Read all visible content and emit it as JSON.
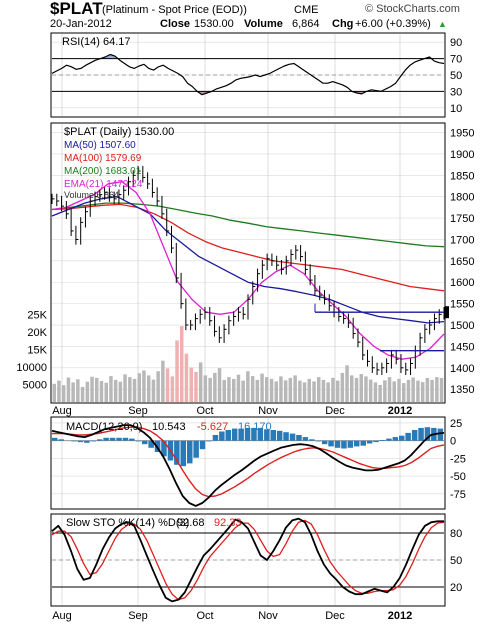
{
  "header": {
    "symbol": "$PLAT",
    "description": "(Platinum  - Spot Price (EOD))",
    "exchange": "CME",
    "date": "20-Jan-2012",
    "close_label": "Close",
    "close_value": "1530.00",
    "volume_label": "Volume",
    "volume_value": "6,864",
    "chg_label": "Chg",
    "chg_value": "+6.00 (+0.39%)",
    "chg_arrow": "▲",
    "watermark": "© StockCharts.com",
    "accent_color": "#2a9d2a"
  },
  "chart_data": [
    {
      "type": "line",
      "panel": "RSI",
      "legend": "RSI(14) 64.17",
      "ylim": [
        0,
        100
      ],
      "yticks": [
        10,
        30,
        50,
        70,
        90
      ],
      "reference_lines": [
        30,
        50,
        70
      ],
      "x_labels": [
        "Aug",
        "Sep",
        "Oct",
        "Nov",
        "Dec",
        "2012"
      ],
      "series": [
        {
          "name": "RSI(14)",
          "color": "#000000",
          "values": [
            52,
            55,
            58,
            62,
            60,
            57,
            58,
            62,
            65,
            68,
            70,
            72,
            75,
            73,
            68,
            64,
            60,
            58,
            61,
            63,
            58,
            56,
            60,
            62,
            58,
            55,
            52,
            48,
            40,
            36,
            30,
            26,
            28,
            30,
            33,
            35,
            37,
            40,
            44,
            46,
            47,
            48,
            50,
            48,
            50,
            52,
            55,
            58,
            61,
            63,
            64,
            60,
            56,
            52,
            48,
            44,
            40,
            40,
            42,
            40,
            38,
            35,
            30,
            28,
            27,
            30,
            32,
            31,
            30,
            33,
            36,
            40,
            48,
            56,
            62,
            66,
            68,
            70,
            72,
            67,
            65,
            64
          ]
        }
      ]
    },
    {
      "type": "line",
      "panel": "Price",
      "title": "$PLAT (Daily) 1530.00",
      "ylim": [
        1320,
        1970
      ],
      "yticks": [
        1350,
        1400,
        1450,
        1500,
        1550,
        1600,
        1650,
        1700,
        1750,
        1800,
        1850,
        1900,
        1950
      ],
      "volume_ticks": [
        "5000",
        "10000",
        "15K",
        "20K",
        "25K"
      ],
      "x_labels": [
        "Aug",
        "Sep",
        "Oct",
        "Nov",
        "Dec",
        "2012"
      ],
      "annotation_lines": [
        1530,
        1440
      ],
      "series": [
        {
          "name": "$PLAT",
          "color": "#000000",
          "values": [
            1795,
            1790,
            1778,
            1760,
            1720,
            1700,
            1740,
            1765,
            1790,
            1800,
            1805,
            1810,
            1800,
            1795,
            1805,
            1815,
            1835,
            1850,
            1860,
            1845,
            1830,
            1810,
            1790,
            1760,
            1720,
            1680,
            1610,
            1550,
            1500,
            1500,
            1515,
            1525,
            1530,
            1510,
            1485,
            1470,
            1490,
            1510,
            1520,
            1530,
            1525,
            1560,
            1590,
            1620,
            1640,
            1655,
            1650,
            1640,
            1630,
            1650,
            1665,
            1675,
            1660,
            1630,
            1605,
            1580,
            1570,
            1560,
            1545,
            1530,
            1520,
            1515,
            1505,
            1480,
            1460,
            1430,
            1415,
            1400,
            1395,
            1400,
            1410,
            1430,
            1420,
            1400,
            1395,
            1410,
            1440,
            1470,
            1490,
            1500,
            1515,
            1525,
            1530
          ]
        },
        {
          "name": "MA(50) 1507.60",
          "color": "#1a1a9e",
          "values": [
            1755,
            1770,
            1785,
            1795,
            1800,
            1780,
            1760,
            1720,
            1690,
            1660,
            1640,
            1620,
            1600,
            1590,
            1585,
            1578,
            1570,
            1560,
            1545,
            1530,
            1520,
            1515,
            1510,
            1505,
            1508
          ]
        },
        {
          "name": "MA(100) 1579.69",
          "color": "#dd2020",
          "values": [
            1770,
            1772,
            1776,
            1780,
            1782,
            1775,
            1760,
            1740,
            1715,
            1695,
            1680,
            1670,
            1660,
            1650,
            1645,
            1640,
            1635,
            1630,
            1620,
            1610,
            1600,
            1590,
            1585,
            1580
          ]
        },
        {
          "name": "MA(200) 1683.01",
          "color": "#1f7a1f",
          "values": [
            1770,
            1775,
            1780,
            1785,
            1785,
            1782,
            1778,
            1770,
            1762,
            1755,
            1745,
            1738,
            1730,
            1725,
            1720,
            1715,
            1710,
            1705,
            1700,
            1695,
            1690,
            1685,
            1683
          ]
        },
        {
          "name": "EMA(21) 1479.24",
          "color": "#e020d0",
          "values": [
            1770,
            1775,
            1790,
            1805,
            1830,
            1835,
            1810,
            1760,
            1680,
            1600,
            1560,
            1530,
            1525,
            1530,
            1560,
            1600,
            1625,
            1640,
            1620,
            1580,
            1550,
            1520,
            1480,
            1450,
            1430,
            1420,
            1425,
            1445,
            1479
          ]
        },
        {
          "name": "Volume 6,864",
          "color": "#a0a0a0",
          "values": [
            5200,
            6100,
            4800,
            7000,
            5600,
            6500,
            4300,
            5800,
            7200,
            6900,
            6000,
            5500,
            7400,
            6300,
            5800,
            7900,
            7100,
            6600,
            8200,
            9000,
            7600,
            6400,
            8800,
            11800,
            9600,
            7300,
            17600,
            21700,
            13800,
            9900,
            8600,
            11300,
            7600,
            6900,
            8300,
            9700,
            6300,
            7100,
            6600,
            7800,
            6100,
            8800,
            7400,
            6300,
            8100,
            7100,
            6600,
            5900,
            7300,
            6200,
            6900,
            7600,
            6100,
            5600,
            6600,
            5900,
            7100,
            6300,
            5600,
            6900,
            6100,
            8300,
            10500,
            7600,
            6900,
            8000,
            7300,
            6400,
            5600,
            4900,
            6200,
            7100,
            5900,
            6600,
            5400,
            6300,
            7000,
            6100,
            5700,
            6900,
            6300,
            7100,
            6864
          ]
        }
      ]
    },
    {
      "type": "line",
      "panel": "MACD",
      "legend_name": "MACD(12,26,9)",
      "legend_values": [
        "10.543",
        "-5.627",
        "16.170"
      ],
      "legend_colors": [
        "#000000",
        "#dd2020",
        "#2a7ab8"
      ],
      "ylim": [
        -95,
        32
      ],
      "yticks": [
        25,
        0,
        -25,
        -50,
        -75
      ],
      "x_labels": [
        "Aug",
        "Sep",
        "Oct",
        "Nov",
        "Dec",
        "2012"
      ],
      "series": [
        {
          "name": "MACD",
          "color": "#000000",
          "values": [
            14,
            12,
            10,
            8,
            6,
            5,
            8,
            12,
            16,
            18,
            20,
            22,
            22,
            18,
            12,
            4,
            -8,
            -22,
            -40,
            -60,
            -78,
            -88,
            -92,
            -88,
            -80,
            -70,
            -62,
            -55,
            -48,
            -42,
            -35,
            -28,
            -22,
            -18,
            -14,
            -10,
            -8,
            -6,
            -5,
            -6,
            -8,
            -12,
            -18,
            -24,
            -30,
            -35,
            -38,
            -40,
            -42,
            -42,
            -41,
            -38,
            -35,
            -32,
            -28,
            -20,
            -10,
            0,
            8,
            10,
            11
          ]
        },
        {
          "name": "Signal",
          "color": "#dd2020",
          "values": [
            10,
            10,
            10,
            9,
            8,
            8,
            9,
            10,
            12,
            14,
            16,
            18,
            19,
            19,
            17,
            14,
            8,
            0,
            -12,
            -26,
            -42,
            -56,
            -68,
            -76,
            -79,
            -78,
            -75,
            -70,
            -65,
            -59,
            -53,
            -46,
            -40,
            -34,
            -29,
            -24,
            -20,
            -16,
            -13,
            -11,
            -10,
            -11,
            -13,
            -16,
            -20,
            -24,
            -28,
            -32,
            -35,
            -38,
            -39,
            -39,
            -38,
            -37,
            -35,
            -31,
            -25,
            -18,
            -11,
            -8,
            -6
          ]
        },
        {
          "name": "Histogram",
          "color": "#2a7ab8",
          "values": [
            4,
            2,
            0,
            -1,
            -2,
            -3,
            -1,
            2,
            4,
            4,
            4,
            4,
            3,
            -1,
            -5,
            -10,
            -16,
            -22,
            -28,
            -34,
            -36,
            -32,
            -24,
            -12,
            -1,
            8,
            13,
            15,
            17,
            17,
            18,
            18,
            18,
            16,
            15,
            14,
            12,
            10,
            8,
            5,
            2,
            -1,
            -5,
            -8,
            -10,
            -11,
            -10,
            -8,
            -7,
            -4,
            -2,
            1,
            3,
            5,
            7,
            11,
            15,
            18,
            19,
            18,
            17
          ]
        }
      ]
    },
    {
      "type": "line",
      "panel": "Stochastic",
      "legend_name": "Slow STO %K(14) %D(3)",
      "legend_values": [
        "92.68",
        "92.33"
      ],
      "legend_colors": [
        "#000000",
        "#dd2020"
      ],
      "ylim": [
        0,
        100
      ],
      "yticks": [
        20,
        50,
        80
      ],
      "reference_lines": [
        20,
        50,
        80
      ],
      "x_labels": [
        "Aug",
        "Sep",
        "Oct",
        "Nov",
        "Dec",
        "2012"
      ],
      "series": [
        {
          "name": "%K",
          "color": "#000000",
          "values": [
            82,
            88,
            78,
            60,
            40,
            28,
            30,
            45,
            62,
            75,
            85,
            90,
            92,
            88,
            72,
            55,
            38,
            22,
            8,
            4,
            6,
            14,
            28,
            42,
            55,
            62,
            70,
            78,
            86,
            95,
            92,
            85,
            70,
            55,
            50,
            60,
            72,
            86,
            94,
            96,
            92,
            78,
            60,
            45,
            35,
            28,
            20,
            15,
            12,
            12,
            15,
            18,
            16,
            14,
            20,
            30,
            45,
            62,
            78,
            88,
            92,
            93,
            93
          ]
        },
        {
          "name": "%D",
          "color": "#dd2020",
          "values": [
            78,
            82,
            82,
            76,
            62,
            46,
            34,
            36,
            46,
            60,
            74,
            84,
            89,
            90,
            84,
            72,
            56,
            40,
            24,
            12,
            6,
            8,
            16,
            28,
            42,
            54,
            62,
            70,
            78,
            86,
            91,
            91,
            84,
            72,
            60,
            54,
            56,
            68,
            82,
            92,
            94,
            90,
            78,
            62,
            48,
            38,
            30,
            22,
            16,
            13,
            13,
            15,
            16,
            16,
            17,
            22,
            32,
            46,
            62,
            76,
            86,
            91,
            92
          ]
        }
      ]
    }
  ]
}
